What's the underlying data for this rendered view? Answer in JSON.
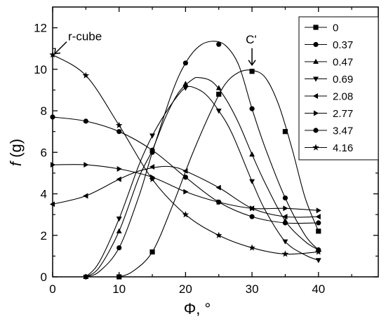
{
  "chart_data": {
    "type": "line",
    "xlabel": "Φ, °",
    "ylabel_italic": "f",
    "ylabel_unit": " (g)",
    "xlim": [
      0,
      49
    ],
    "ylim": [
      0,
      13
    ],
    "xticks": [
      0,
      10,
      20,
      30,
      40
    ],
    "yticks": [
      0,
      2,
      4,
      6,
      8,
      10,
      12
    ],
    "grid": false,
    "legend_placement": "top-right",
    "annotations": [
      {
        "text": "r-cube",
        "x": 0,
        "y": 10.65
      },
      {
        "text": "C'",
        "x": 30,
        "y": 9.9
      }
    ],
    "series": [
      {
        "name": "0",
        "marker": "square",
        "points": [
          [
            10,
            0
          ],
          [
            15,
            1.2
          ],
          [
            25,
            8.8
          ],
          [
            30,
            9.9
          ],
          [
            35,
            7.0
          ],
          [
            40,
            2.2
          ]
        ],
        "curve": [
          [
            10,
            0
          ],
          [
            12,
            0.25
          ],
          [
            15,
            1.2
          ],
          [
            18,
            3.4
          ],
          [
            21,
            5.9
          ],
          [
            24,
            8.1
          ],
          [
            26,
            9.3
          ],
          [
            28,
            9.85
          ],
          [
            30,
            9.95
          ],
          [
            32,
            9.6
          ],
          [
            34,
            8.3
          ],
          [
            36,
            6.2
          ],
          [
            38,
            3.8
          ],
          [
            40,
            2.2
          ]
        ]
      },
      {
        "name": "0.37",
        "marker": "circle",
        "points": [
          [
            5,
            0
          ],
          [
            10,
            1.4
          ],
          [
            15,
            6.0
          ],
          [
            20,
            10.3
          ],
          [
            25,
            11.2
          ],
          [
            30,
            8.1
          ],
          [
            35,
            3.8
          ],
          [
            40,
            1.3
          ]
        ],
        "curve": [
          [
            5,
            0
          ],
          [
            7,
            0.25
          ],
          [
            10,
            1.4
          ],
          [
            13,
            3.9
          ],
          [
            15,
            6.0
          ],
          [
            18,
            8.9
          ],
          [
            20,
            10.3
          ],
          [
            22,
            11.1
          ],
          [
            24,
            11.35
          ],
          [
            26,
            11.15
          ],
          [
            28,
            10.2
          ],
          [
            30,
            8.1
          ],
          [
            32,
            6.2
          ],
          [
            35,
            3.8
          ],
          [
            38,
            2.0
          ],
          [
            40,
            1.3
          ]
        ]
      },
      {
        "name": "0.47",
        "marker": "triangle-up",
        "points": [
          [
            5,
            0
          ],
          [
            10,
            2.2
          ],
          [
            15,
            6.1
          ],
          [
            20,
            9.3
          ],
          [
            25,
            9.1
          ],
          [
            30,
            5.9
          ],
          [
            35,
            2.7
          ],
          [
            40,
            1.3
          ]
        ],
        "curve": [
          [
            5,
            0
          ],
          [
            7,
            0.45
          ],
          [
            10,
            2.2
          ],
          [
            13,
            4.8
          ],
          [
            15,
            6.1
          ],
          [
            17,
            7.7
          ],
          [
            19,
            8.9
          ],
          [
            21,
            9.5
          ],
          [
            22,
            9.6
          ],
          [
            24,
            9.4
          ],
          [
            26,
            8.6
          ],
          [
            28,
            7.4
          ],
          [
            30,
            5.9
          ],
          [
            32,
            4.5
          ],
          [
            35,
            2.7
          ],
          [
            38,
            1.7
          ],
          [
            40,
            1.3
          ]
        ]
      },
      {
        "name": "0.69",
        "marker": "triangle-down",
        "points": [
          [
            5,
            0
          ],
          [
            10,
            2.8
          ],
          [
            15,
            6.8
          ],
          [
            20,
            9.1
          ],
          [
            25,
            8.0
          ],
          [
            30,
            4.6
          ],
          [
            35,
            1.7
          ],
          [
            40,
            0.8
          ]
        ],
        "curve": [
          [
            5,
            0
          ],
          [
            7,
            0.7
          ],
          [
            10,
            2.8
          ],
          [
            13,
            5.4
          ],
          [
            15,
            6.8
          ],
          [
            17,
            7.9
          ],
          [
            19,
            8.8
          ],
          [
            20,
            9.1
          ],
          [
            21,
            9.15
          ],
          [
            23,
            8.8
          ],
          [
            25,
            8.0
          ],
          [
            27,
            6.9
          ],
          [
            30,
            4.6
          ],
          [
            32,
            3.2
          ],
          [
            35,
            1.7
          ],
          [
            38,
            1.05
          ],
          [
            40,
            0.8
          ]
        ]
      },
      {
        "name": "2.08",
        "marker": "triangle-left",
        "points": [
          [
            0,
            3.5
          ],
          [
            5,
            3.9
          ],
          [
            10,
            4.7
          ],
          [
            15,
            5.3
          ],
          [
            20,
            5.1
          ],
          [
            25,
            4.3
          ],
          [
            30,
            3.3
          ],
          [
            35,
            2.9
          ],
          [
            40,
            2.9
          ]
        ],
        "curve": [
          [
            0,
            3.5
          ],
          [
            5,
            3.9
          ],
          [
            10,
            4.7
          ],
          [
            13,
            5.1
          ],
          [
            16,
            5.3
          ],
          [
            18,
            5.3
          ],
          [
            20,
            5.1
          ],
          [
            25,
            4.3
          ],
          [
            30,
            3.3
          ],
          [
            35,
            2.9
          ],
          [
            40,
            2.9
          ]
        ]
      },
      {
        "name": "2.77",
        "marker": "triangle-right",
        "points": [
          [
            0,
            5.4
          ],
          [
            5,
            5.4
          ],
          [
            10,
            5.2
          ],
          [
            15,
            4.8
          ],
          [
            20,
            4.1
          ],
          [
            25,
            3.6
          ],
          [
            30,
            3.3
          ],
          [
            35,
            3.3
          ],
          [
            40,
            3.2
          ]
        ],
        "curve": [
          [
            0,
            5.4
          ],
          [
            5,
            5.4
          ],
          [
            10,
            5.2
          ],
          [
            15,
            4.8
          ],
          [
            20,
            4.1
          ],
          [
            25,
            3.6
          ],
          [
            30,
            3.3
          ],
          [
            35,
            3.3
          ],
          [
            40,
            3.2
          ]
        ]
      },
      {
        "name": "3.47",
        "marker": "circle",
        "points": [
          [
            0,
            7.7
          ],
          [
            5,
            7.5
          ],
          [
            10,
            7.0
          ],
          [
            15,
            6.1
          ],
          [
            20,
            4.8
          ],
          [
            25,
            3.6
          ],
          [
            30,
            2.9
          ],
          [
            35,
            2.6
          ],
          [
            40,
            2.6
          ]
        ],
        "curve": [
          [
            0,
            7.7
          ],
          [
            5,
            7.5
          ],
          [
            10,
            7.0
          ],
          [
            15,
            6.1
          ],
          [
            20,
            4.8
          ],
          [
            25,
            3.6
          ],
          [
            30,
            2.9
          ],
          [
            35,
            2.6
          ],
          [
            40,
            2.6
          ]
        ]
      },
      {
        "name": "4.16",
        "marker": "star",
        "points": [
          [
            0,
            10.7
          ],
          [
            5,
            9.7
          ],
          [
            10,
            7.3
          ],
          [
            15,
            4.7
          ],
          [
            20,
            3.0
          ],
          [
            25,
            2.0
          ],
          [
            30,
            1.4
          ],
          [
            35,
            1.1
          ],
          [
            40,
            1.2
          ]
        ],
        "curve": [
          [
            0,
            10.7
          ],
          [
            5,
            9.7
          ],
          [
            10,
            7.3
          ],
          [
            15,
            4.7
          ],
          [
            20,
            3.0
          ],
          [
            25,
            2.0
          ],
          [
            30,
            1.4
          ],
          [
            35,
            1.1
          ],
          [
            40,
            1.2
          ]
        ]
      }
    ]
  }
}
